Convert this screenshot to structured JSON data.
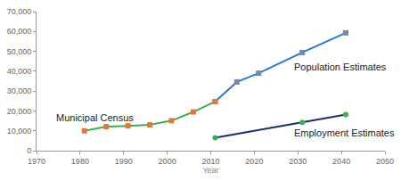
{
  "chart_data": {
    "type": "line",
    "x_label": "Year",
    "xlim": [
      1970,
      2050
    ],
    "xticks": [
      1970,
      1980,
      1990,
      2000,
      2010,
      2020,
      2030,
      2040,
      2050
    ],
    "ylim": [
      0,
      70000
    ],
    "yticks": [
      0,
      {
        "value": 10000,
        "label": "10,000"
      },
      {
        "value": 20000,
        "label": "20,000"
      },
      {
        "value": 30000,
        "label": "30,000"
      },
      {
        "value": 40000,
        "label": "40,000"
      },
      {
        "value": 50000,
        "label": "50,000"
      },
      {
        "value": 60000,
        "label": "60,000"
      },
      {
        "value": 70000,
        "label": "70,000"
      }
    ],
    "grid": false,
    "series": [
      {
        "name": "Population Estimates",
        "color": "#2a7bd0",
        "marker_color": "#7589a8",
        "marker": "square",
        "x": [
          2011,
          2016,
          2021,
          2031,
          2041
        ],
        "values": [
          24700,
          34600,
          39000,
          49400,
          59300
        ]
      },
      {
        "name": "Municipal Census",
        "color": "#3cb04a",
        "marker_color": "#e07a3a",
        "marker": "square",
        "x": [
          1981,
          1986,
          1991,
          1996,
          2001,
          2006,
          2011
        ],
        "values": [
          10000,
          12100,
          12500,
          13000,
          15100,
          19500,
          24700
        ]
      },
      {
        "name": "Employment Estimates",
        "color": "#1f2f66",
        "marker_color": "#3cb04a",
        "marker": "circle",
        "x": [
          2011,
          2031,
          2041
        ],
        "values": [
          6500,
          14300,
          18200
        ]
      }
    ]
  }
}
